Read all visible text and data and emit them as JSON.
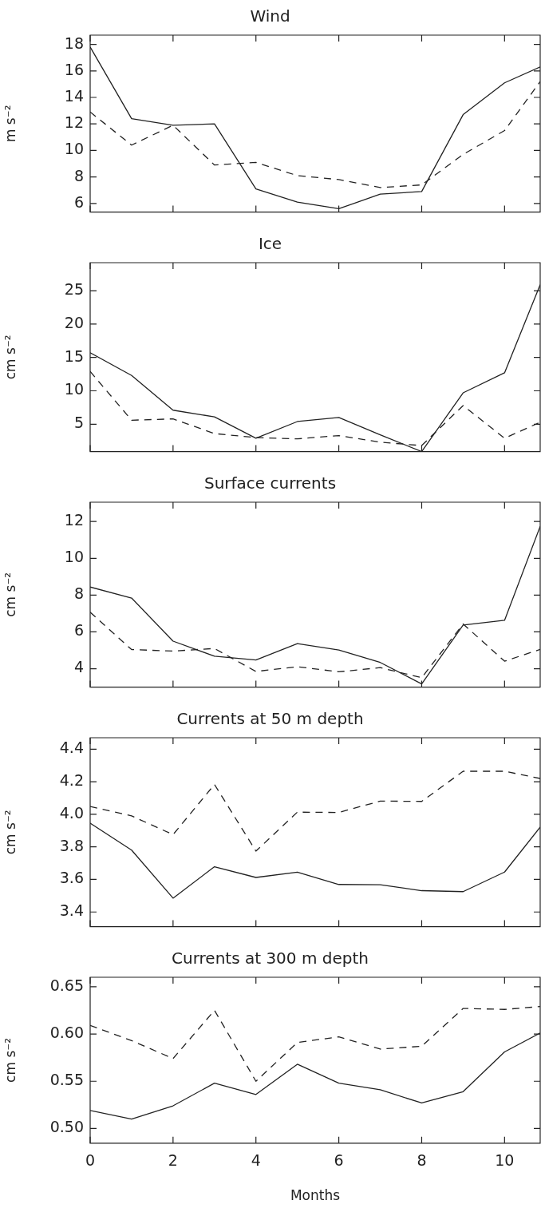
{
  "chart_data": [
    {
      "type": "line",
      "title": "Wind",
      "ylabel": "m s⁻²",
      "x": [
        0,
        1,
        2,
        3,
        4,
        5,
        6,
        7,
        8,
        9,
        10,
        10.86
      ],
      "xlim": [
        0,
        10.86
      ],
      "xticks": [
        0,
        2,
        4,
        6,
        8,
        10
      ],
      "ylim": [
        5.35,
        18.7
      ],
      "yticks": [
        6,
        8,
        10,
        12,
        14,
        16,
        18
      ],
      "tick_labels": "y",
      "marker": "none",
      "series": [
        {
          "color": "#222222",
          "line_style": "solid",
          "values": [
            17.8,
            12.4,
            11.9,
            12.0,
            7.1,
            6.1,
            5.6,
            6.7,
            6.9,
            12.7,
            15.1,
            16.3
          ]
        },
        {
          "color": "#222222",
          "line_style": "dashed",
          "values": [
            12.9,
            10.4,
            11.9,
            8.9,
            9.1,
            8.1,
            7.8,
            7.2,
            7.4,
            9.7,
            11.5,
            15.2
          ]
        }
      ]
    },
    {
      "type": "line",
      "title": "Ice",
      "ylabel": "cm s⁻²",
      "x": [
        0,
        1,
        2,
        3,
        4,
        5,
        6,
        7,
        8,
        9,
        10,
        10.86
      ],
      "xlim": [
        0,
        10.86
      ],
      "xticks": [
        0,
        2,
        4,
        6,
        8,
        10
      ],
      "ylim": [
        0.9,
        29.2
      ],
      "yticks": [
        5,
        10,
        15,
        20,
        25
      ],
      "tick_labels": "y",
      "marker": "none",
      "series": [
        {
          "color": "#222222",
          "line_style": "solid",
          "values": [
            15.7,
            12.3,
            7.1,
            6.1,
            2.9,
            5.4,
            6.0,
            3.4,
            0.9,
            9.7,
            12.7,
            25.9
          ]
        },
        {
          "color": "#222222",
          "line_style": "dashed",
          "values": [
            12.9,
            5.6,
            5.8,
            3.6,
            3.0,
            2.8,
            3.3,
            2.3,
            1.8,
            7.8,
            2.9,
            5.3
          ]
        }
      ]
    },
    {
      "type": "line",
      "title": "Surface currents",
      "ylabel": "cm s⁻²",
      "x": [
        0,
        1,
        2,
        3,
        4,
        5,
        6,
        7,
        8,
        9,
        10,
        10.86
      ],
      "xlim": [
        0,
        10.86
      ],
      "xticks": [
        0,
        2,
        4,
        6,
        8,
        10
      ],
      "ylim": [
        3.0,
        13.05
      ],
      "yticks": [
        4,
        6,
        8,
        10,
        12
      ],
      "tick_labels": "y",
      "marker": "none",
      "series": [
        {
          "color": "#222222",
          "line_style": "solid",
          "values": [
            8.44,
            7.84,
            5.5,
            4.68,
            4.47,
            5.36,
            5.02,
            4.34,
            3.17,
            6.37,
            6.63,
            11.74
          ]
        },
        {
          "color": "#222222",
          "line_style": "dashed",
          "values": [
            7.07,
            5.04,
            4.96,
            5.1,
            3.85,
            4.11,
            3.83,
            4.06,
            3.51,
            6.43,
            4.41,
            5.05
          ]
        }
      ]
    },
    {
      "type": "line",
      "title": "Currents at 50 m depth",
      "ylabel": "cm s⁻²",
      "x": [
        0,
        1,
        2,
        3,
        4,
        5,
        6,
        7,
        8,
        9,
        10,
        10.86
      ],
      "xlim": [
        0,
        10.86
      ],
      "xticks": [
        0,
        2,
        4,
        6,
        8,
        10
      ],
      "ylim": [
        3.31,
        4.47
      ],
      "yticks": [
        {
          "value": 3.4,
          "label": "3.4"
        },
        {
          "value": 3.6,
          "label": "3.6"
        },
        {
          "value": 3.8,
          "label": "3.8"
        },
        {
          "value": 4.0,
          "label": "4.0"
        },
        {
          "value": 4.2,
          "label": "4.2"
        },
        {
          "value": 4.4,
          "label": "4.4"
        }
      ],
      "tick_labels": "y",
      "marker": "none",
      "series": [
        {
          "color": "#222222",
          "line_style": "solid",
          "values": [
            3.945,
            3.78,
            3.485,
            3.678,
            3.612,
            3.645,
            3.569,
            3.567,
            3.531,
            3.525,
            3.645,
            3.921
          ]
        },
        {
          "color": "#222222",
          "line_style": "dashed",
          "values": [
            4.048,
            3.99,
            3.875,
            4.183,
            3.774,
            4.013,
            4.011,
            4.081,
            4.079,
            4.264,
            4.264,
            4.22
          ]
        }
      ]
    },
    {
      "type": "line",
      "title": "Currents at 300 m depth",
      "xlabel": "Months",
      "ylabel": "cm s⁻²",
      "x": [
        0,
        1,
        2,
        3,
        4,
        5,
        6,
        7,
        8,
        9,
        10,
        10.86
      ],
      "xlim": [
        0,
        10.86
      ],
      "xticks": [
        0,
        2,
        4,
        6,
        8,
        10
      ],
      "ylim": [
        0.4845,
        0.66
      ],
      "yticks": [
        {
          "value": 0.5,
          "label": "0.50"
        },
        {
          "value": 0.55,
          "label": "0.55"
        },
        {
          "value": 0.6,
          "label": "0.60"
        },
        {
          "value": 0.65,
          "label": "0.65"
        }
      ],
      "marker": "none",
      "series": [
        {
          "color": "#222222",
          "line_style": "solid",
          "values": [
            0.519,
            0.51,
            0.524,
            0.548,
            0.536,
            0.568,
            0.548,
            0.541,
            0.527,
            0.539,
            0.581,
            0.601
          ]
        },
        {
          "color": "#222222",
          "line_style": "dashed",
          "values": [
            0.609,
            0.593,
            0.574,
            0.625,
            0.55,
            0.591,
            0.597,
            0.584,
            0.587,
            0.627,
            0.626,
            0.629
          ]
        }
      ]
    }
  ]
}
